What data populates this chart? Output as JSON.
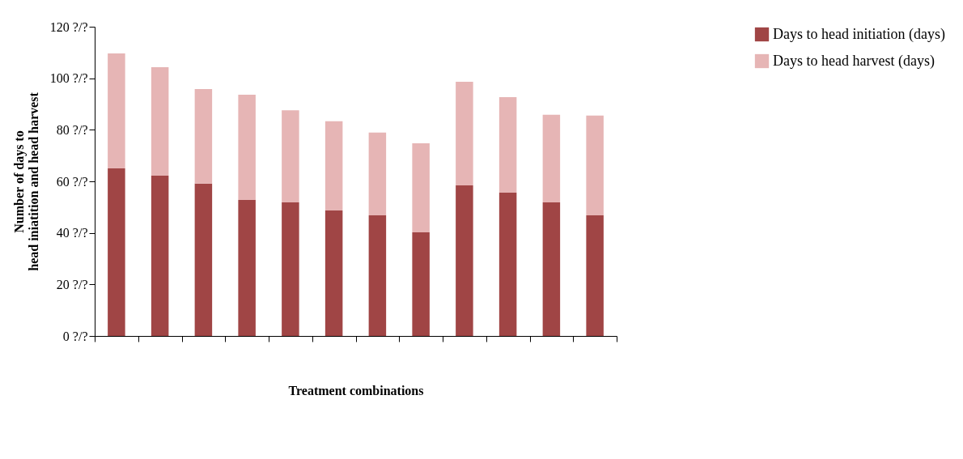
{
  "chart_data": {
    "type": "bar",
    "stacked": true,
    "xlabel": "Treatment combinations",
    "ylabel": "Number of days to\nhead iniatition and head harvest",
    "categories": [
      null,
      null,
      null,
      null,
      null,
      null,
      null,
      null,
      null,
      null,
      null,
      null
    ],
    "series": [
      {
        "name": "Days to head initiation (days)",
        "color": "#a04545",
        "values": [
          65.0,
          62.2,
          59.1,
          52.8,
          51.8,
          48.7,
          46.8,
          40.2,
          58.4,
          55.6,
          51.8,
          46.8
        ]
      },
      {
        "name": "Days to head harvest (days)",
        "color": "#e6b5b5",
        "values": [
          44.6,
          42.1,
          36.7,
          40.8,
          35.8,
          34.6,
          32.1,
          34.6,
          40.2,
          37.1,
          34.0,
          38.7
        ]
      }
    ],
    "ylim": [
      0,
      120
    ],
    "yticks": [
      {
        "value": 0,
        "label": "0 ?/?"
      },
      {
        "value": 20,
        "label": "20 ?/?"
      },
      {
        "value": 40,
        "label": "40 ?/?"
      },
      {
        "value": 60,
        "label": "60 ?/?"
      },
      {
        "value": 80,
        "label": "80 ?/?"
      },
      {
        "value": 100,
        "label": "100 ?/?"
      },
      {
        "value": 120,
        "label": "120 ?/?"
      }
    ],
    "grid": false,
    "legend": "right"
  }
}
